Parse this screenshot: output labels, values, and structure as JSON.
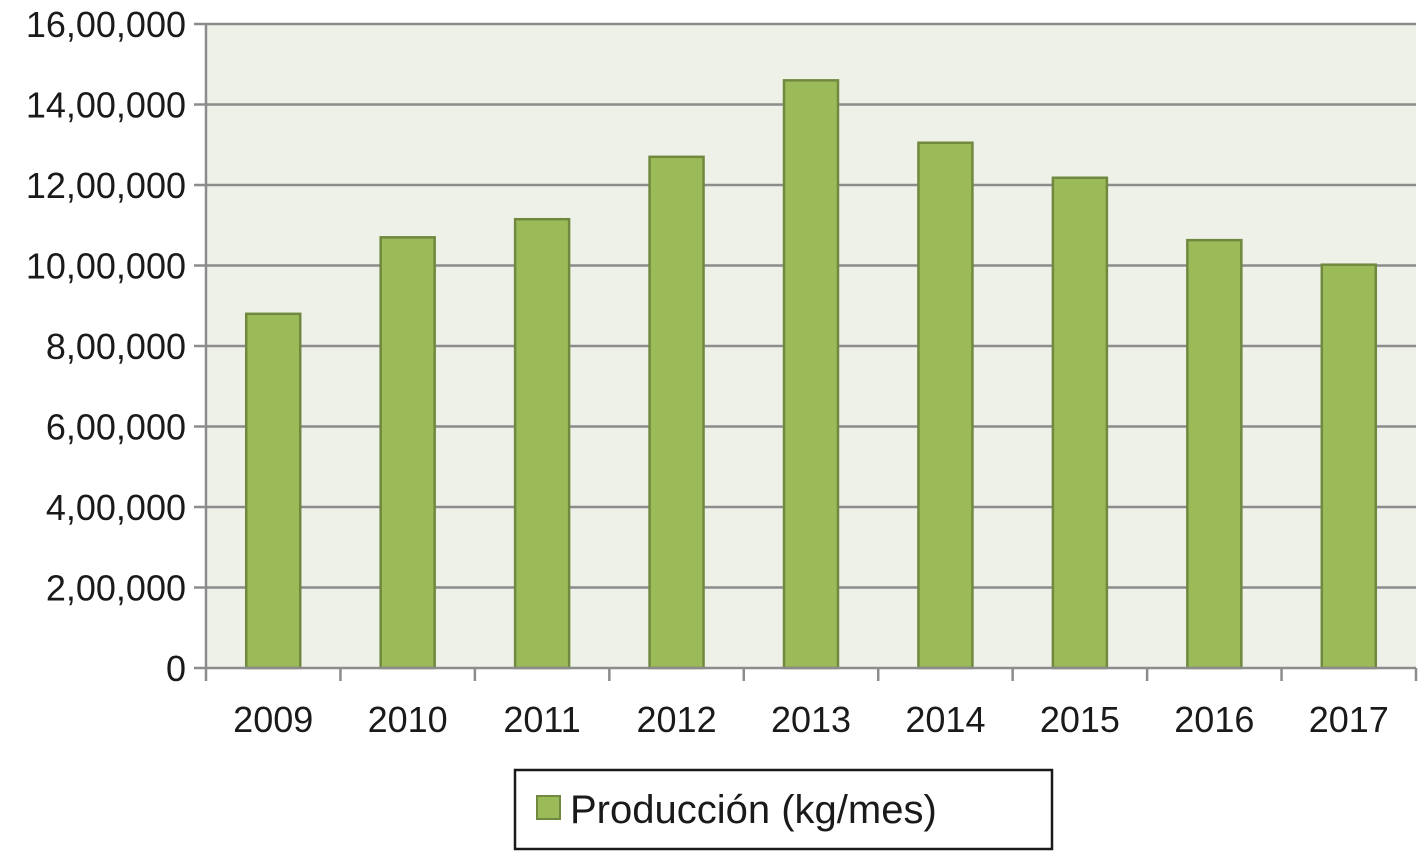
{
  "chart_data": {
    "type": "bar",
    "categories": [
      "2009",
      "2010",
      "2011",
      "2012",
      "2013",
      "2014",
      "2015",
      "2016",
      "2017"
    ],
    "series": [
      {
        "name": "Producción (kg/mes)",
        "values": [
          880000,
          1070000,
          1115000,
          1270000,
          1460000,
          1305000,
          1218000,
          1063000,
          1002000
        ]
      }
    ],
    "ylim": [
      0,
      1600000
    ],
    "yticks": [
      0,
      200000,
      400000,
      600000,
      800000,
      1000000,
      1200000,
      1400000,
      1600000
    ],
    "ytick_labels": [
      "0",
      "2,00,000",
      "4,00,000",
      "6,00,000",
      "8,00,000",
      "10,00,000",
      "12,00,000",
      "14,00,000",
      "16,00,000"
    ],
    "title": "",
    "xlabel": "",
    "ylabel": "",
    "grid": true,
    "legend_position": "bottom-center",
    "colors": {
      "bar_fill": "#9bbb59",
      "bar_stroke": "#71893f",
      "plot_background": "#eef1e8",
      "gridline": "#8c8c8c",
      "axis": "#8c8c8c"
    }
  }
}
